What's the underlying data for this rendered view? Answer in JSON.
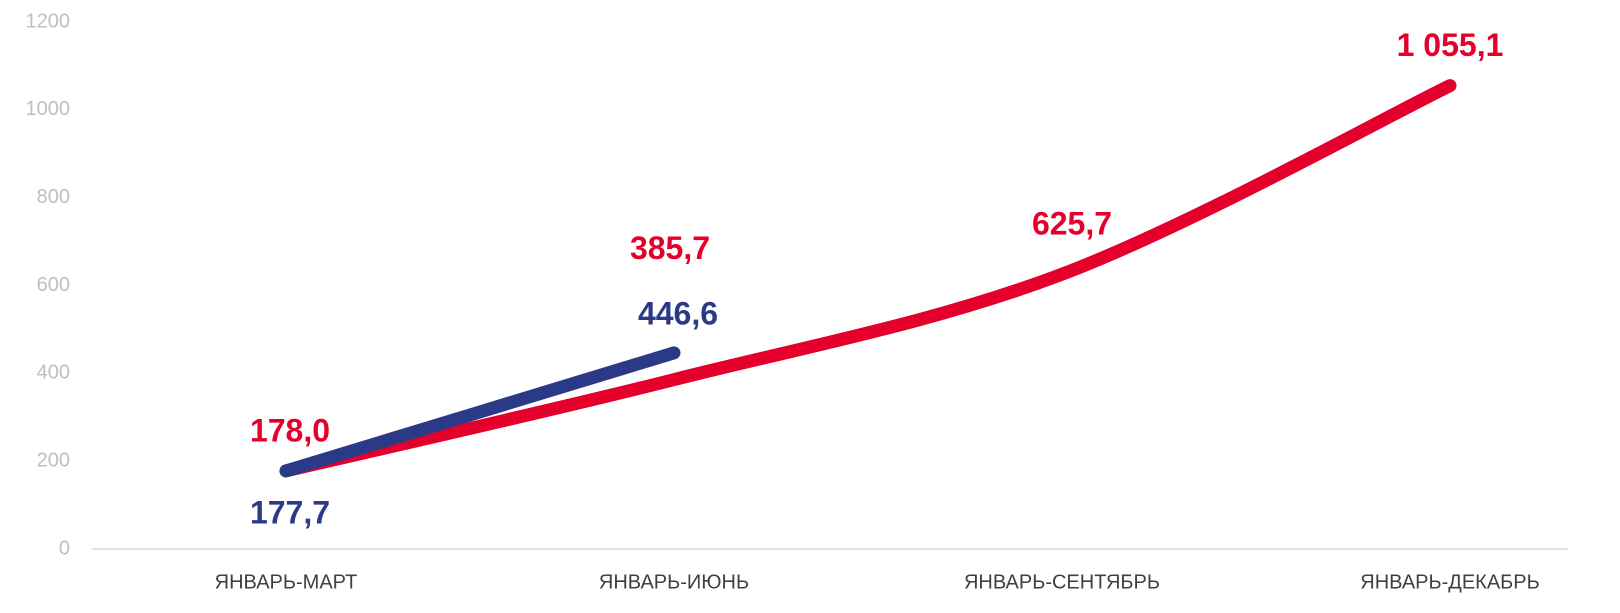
{
  "chart_data": {
    "type": "line",
    "categories": [
      "ЯНВАРЬ-МАРТ",
      "ЯНВАРЬ-ИЮНЬ",
      "ЯНВАРЬ-СЕНТЯБРЬ",
      "ЯНВАРЬ-ДЕКАБРЬ"
    ],
    "series": [
      {
        "color": "#e4002b",
        "values": [
          178.0,
          385.7,
          625.7,
          1055.1
        ],
        "value_labels": [
          "178,0",
          "385,7",
          "625,7",
          "1 055,1"
        ]
      },
      {
        "color": "#2b3a87",
        "values": [
          177.7,
          446.6,
          null,
          null
        ],
        "value_labels": [
          "177,7",
          "446,6",
          null,
          null
        ]
      }
    ],
    "ylim": [
      0,
      1200
    ],
    "yticks": [
      0,
      200,
      400,
      600,
      800,
      1000,
      1200
    ],
    "grid": false
  }
}
